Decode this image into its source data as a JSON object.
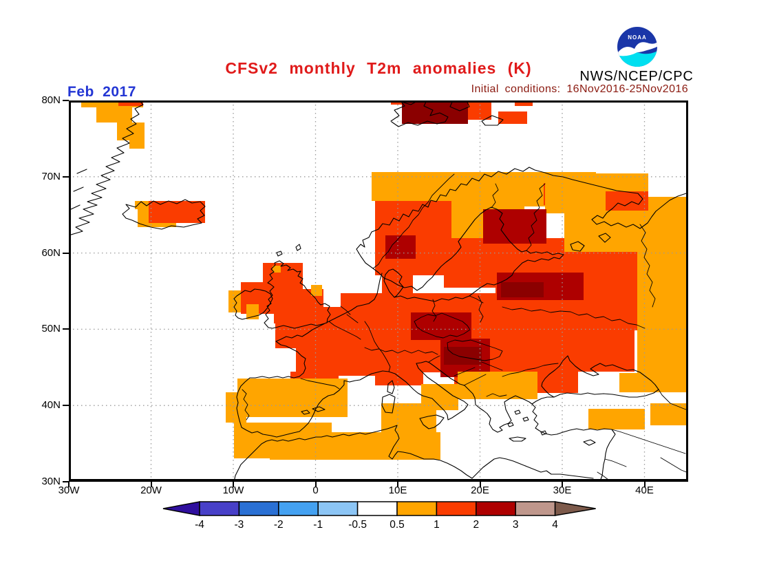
{
  "header": {
    "title": "CFSv2 monthly T2m anomalies (K)",
    "title_color": "#e01a1a",
    "subtitle": "Initial conditions: 16Nov2016-25Nov2016",
    "subtitle_color": "#8b1a10",
    "date_label": "Feb 2017",
    "date_color": "#2336d4",
    "agency": "NWS/NCEP/CPC",
    "logo_text": "NOAA",
    "logo_blue": "#1a36a8",
    "logo_cyan": "#00dff0"
  },
  "map": {
    "lat_ticks": [
      "80N",
      "70N",
      "60N",
      "50N",
      "40N",
      "30N"
    ],
    "lon_ticks": [
      "30W",
      "20W",
      "10W",
      "0",
      "10E",
      "20E",
      "30E",
      "40E"
    ],
    "grid_color": "#9a9a9a",
    "frame_color": "#000000"
  },
  "legend": {
    "tick_labels": [
      "-4",
      "-3",
      "-2",
      "-1",
      "-0.5",
      "0.5",
      "1",
      "2",
      "3",
      "4"
    ],
    "segment_colors": [
      "#4840c8",
      "#2a70d4",
      "#44a1f1",
      "#8cc5f5",
      "#ffffff",
      "#ffa500",
      "#fa3c00",
      "#ae0000",
      "#bf978c"
    ],
    "left_arrow_color": "#2f0f9e",
    "right_arrow_color": "#7d5a4b"
  },
  "palette": {
    "o": "#ffa500",
    "r": "#fa3c00",
    "d": "#ae0000",
    "m": "#8b0000"
  },
  "chart_data": {
    "type": "heatmap",
    "title": "CFSv2 monthly T2m anomalies (K)",
    "subtitle": "Initial conditions: 16Nov2016-25Nov2016",
    "forecast_month": "Feb 2017",
    "units": "K",
    "lon_range": [
      "30W",
      "45E"
    ],
    "lat_range": [
      "30N",
      "80N"
    ],
    "legend_bins": [
      -4,
      -3,
      -2,
      -1,
      -0.5,
      0.5,
      1,
      2,
      3,
      4
    ],
    "summary": "Positive 2m temperature anomalies of 0.5 to >3 K over nearly all of Europe; strongest (2-3 K) over central Europe, Balkans, Belarus and Svalbard; 0.5-1 K fringes over Iberia, North Africa, Iceland, Greenland, Turkey and NW Russia; neutral over oceans, Mediterranean and most of Turkey."
  },
  "anomaly_cells": [
    [
      18,
      0,
      90,
      10,
      "o"
    ],
    [
      72,
      0,
      36,
      8,
      "r"
    ],
    [
      40,
      10,
      52,
      22,
      "o"
    ],
    [
      70,
      32,
      40,
      26,
      "o"
    ],
    [
      88,
      58,
      22,
      12,
      "o"
    ],
    [
      468,
      0,
      18,
      6,
      "r"
    ],
    [
      484,
      0,
      96,
      34,
      "m"
    ],
    [
      580,
      0,
      34,
      28,
      "r"
    ],
    [
      624,
      16,
      42,
      18,
      "r"
    ],
    [
      648,
      0,
      26,
      8,
      "r"
    ],
    [
      96,
      146,
      24,
      12,
      "o"
    ],
    [
      100,
      156,
      56,
      28,
      "o"
    ],
    [
      116,
      146,
      82,
      32,
      "r"
    ],
    [
      232,
      276,
      26,
      32,
      "o"
    ],
    [
      250,
      264,
      48,
      46,
      "r"
    ],
    [
      282,
      236,
      58,
      48,
      "r"
    ],
    [
      298,
      274,
      72,
      50,
      "r"
    ],
    [
      296,
      240,
      12,
      10,
      "o"
    ],
    [
      258,
      296,
      18,
      22,
      "o"
    ],
    [
      352,
      268,
      16,
      16,
      "o"
    ],
    [
      440,
      104,
      126,
      42,
      "o"
    ],
    [
      566,
      104,
      200,
      50,
      "o"
    ],
    [
      690,
      120,
      82,
      32,
      "r"
    ],
    [
      445,
      146,
      122,
      108,
      "r"
    ],
    [
      556,
      146,
      106,
      54,
      "o"
    ],
    [
      545,
      200,
      178,
      72,
      "r"
    ],
    [
      692,
      106,
      150,
      58,
      "o"
    ],
    [
      842,
      140,
      58,
      34,
      "o"
    ],
    [
      780,
      132,
      62,
      28,
      "r"
    ],
    [
      720,
      160,
      180,
      60,
      "o"
    ],
    [
      720,
      220,
      106,
      114,
      "r"
    ],
    [
      826,
      220,
      74,
      180,
      "o"
    ],
    [
      455,
      248,
      45,
      40,
      "r"
    ],
    [
      395,
      280,
      345,
      65,
      "r"
    ],
    [
      300,
      300,
      200,
      60,
      "r"
    ],
    [
      330,
      360,
      170,
      40,
      "r"
    ],
    [
      395,
      345,
      345,
      50,
      "r"
    ],
    [
      560,
      395,
      180,
      30,
      "r"
    ],
    [
      620,
      254,
      202,
      140,
      "r"
    ],
    [
      322,
      394,
      70,
      36,
      "r"
    ],
    [
      445,
      380,
      70,
      34,
      "r"
    ],
    [
      460,
      196,
      44,
      34,
      "d"
    ],
    [
      602,
      158,
      92,
      50,
      "d"
    ],
    [
      497,
      308,
      88,
      40,
      "d"
    ],
    [
      540,
      346,
      72,
      56,
      "d"
    ],
    [
      545,
      358,
      55,
      26,
      "m"
    ],
    [
      622,
      250,
      126,
      40,
      "d"
    ],
    [
      628,
      264,
      62,
      22,
      "m"
    ],
    [
      565,
      394,
      116,
      40,
      "o"
    ],
    [
      245,
      404,
      160,
      56,
      "o"
    ],
    [
      228,
      424,
      30,
      44,
      "o"
    ],
    [
      240,
      468,
      142,
      52,
      "o"
    ],
    [
      292,
      482,
      248,
      40,
      "o"
    ],
    [
      454,
      440,
      80,
      60,
      "o"
    ],
    [
      512,
      412,
      54,
      38,
      "o"
    ],
    [
      522,
      426,
      30,
      21,
      "o"
    ],
    [
      755,
      448,
      82,
      30,
      "o"
    ],
    [
      845,
      440,
      55,
      32,
      "o"
    ],
    [
      800,
      396,
      100,
      28,
      "o"
    ]
  ]
}
